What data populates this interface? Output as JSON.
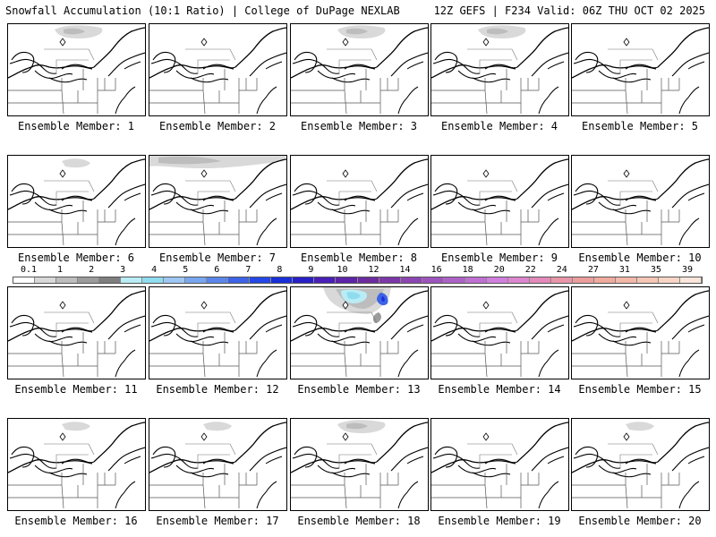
{
  "header": {
    "left": "Snowfall Accumulation (10:1 Ratio) | College of DuPage NEXLAB",
    "right": "12Z GEFS | F234 Valid: 06Z THU OCT 02 2025"
  },
  "legend": {
    "labels": [
      "0.1",
      "1",
      "2",
      "3",
      "4",
      "5",
      "6",
      "7",
      "8",
      "9",
      "10",
      "12",
      "14",
      "16",
      "18",
      "20",
      "22",
      "24",
      "27",
      "31",
      "35",
      "39"
    ],
    "colors": [
      "#ffffff",
      "#d9d9d9",
      "#bdbdbd",
      "#9c9c9c",
      "#7f7f7f",
      "#b9ecf5",
      "#8fdcef",
      "#9fc7f5",
      "#79a6f0",
      "#5a86ea",
      "#3d63e6",
      "#2548e4",
      "#1a2fd8",
      "#2a20c8",
      "#4a1fb8",
      "#5e24a8",
      "#6c2c9e",
      "#7d38a8",
      "#8c46b2",
      "#9d54bd",
      "#ad62c7",
      "#bf70d2",
      "#d07fdc",
      "#dc86cf",
      "#e38ab9",
      "#e895a8",
      "#ec9e9c",
      "#f0aa9e",
      "#f2b8a8",
      "#f5c6b5",
      "#f8d6c6",
      "#fbe6dc"
    ]
  },
  "members": [
    {
      "label": "Ensemble Member: 1",
      "snow": "light-north"
    },
    {
      "label": "Ensemble Member: 2",
      "snow": "none"
    },
    {
      "label": "Ensemble Member: 3",
      "snow": "light-north"
    },
    {
      "label": "Ensemble Member: 4",
      "snow": "light-north"
    },
    {
      "label": "Ensemble Member: 5",
      "snow": "none"
    },
    {
      "label": "Ensemble Member: 6",
      "snow": "trace-north"
    },
    {
      "label": "Ensemble Member: 7",
      "snow": "light-wide"
    },
    {
      "label": "Ensemble Member: 8",
      "snow": "none"
    },
    {
      "label": "Ensemble Member: 9",
      "snow": "none"
    },
    {
      "label": "Ensemble Member: 10",
      "snow": "none"
    },
    {
      "label": "Ensemble Member: 11",
      "snow": "none"
    },
    {
      "label": "Ensemble Member: 12",
      "snow": "none"
    },
    {
      "label": "Ensemble Member: 13",
      "snow": "heavy-quebec"
    },
    {
      "label": "Ensemble Member: 14",
      "snow": "none"
    },
    {
      "label": "Ensemble Member: 15",
      "snow": "none"
    },
    {
      "label": "Ensemble Member: 16",
      "snow": "trace-north"
    },
    {
      "label": "Ensemble Member: 17",
      "snow": "trace-north"
    },
    {
      "label": "Ensemble Member: 18",
      "snow": "light-north"
    },
    {
      "label": "Ensemble Member: 19",
      "snow": "none"
    },
    {
      "label": "Ensemble Member: 20",
      "snow": "trace-north"
    }
  ]
}
